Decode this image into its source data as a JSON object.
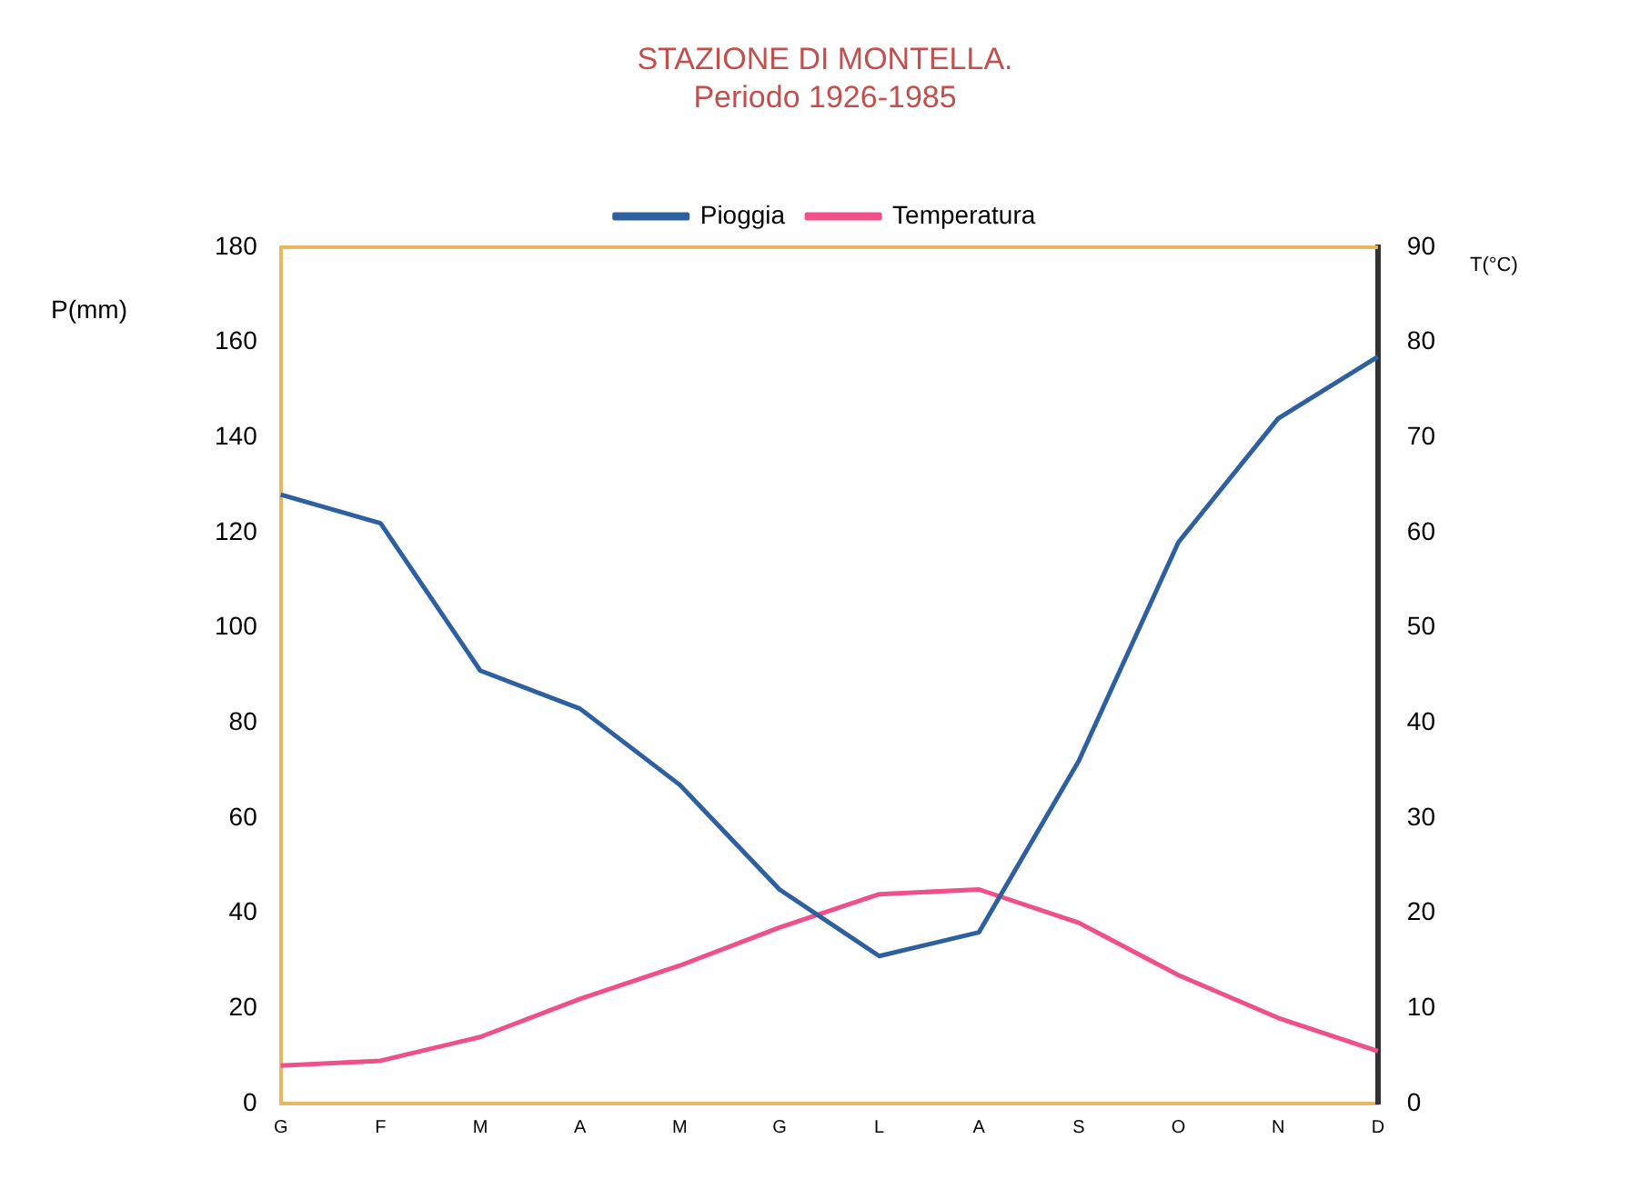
{
  "chart_data": {
    "type": "line",
    "title": "STAZIONE DI MONTELLA.",
    "subtitle": "Periodo 1926-1985",
    "ylabel": "P(mm)",
    "y2label": "T(°C)",
    "categories": [
      "G",
      "F",
      "M",
      "A",
      "M",
      "G",
      "L",
      "A",
      "S",
      "O",
      "N",
      "D"
    ],
    "series": [
      {
        "name": "Pioggia",
        "color": "#2e5f9e",
        "values": [
          128,
          122,
          91,
          83,
          67,
          45,
          31,
          36,
          72,
          118,
          144,
          157
        ]
      },
      {
        "name": "Temperatura",
        "color": "#f0508a",
        "axis": "y2",
        "values": [
          4,
          4.5,
          7,
          11,
          14.5,
          18.5,
          22,
          22.5,
          19,
          13.5,
          9,
          5.5
        ]
      }
    ],
    "ylim": [
      0,
      180
    ],
    "yticks": [
      0,
      20,
      40,
      60,
      80,
      100,
      120,
      140,
      160,
      180
    ],
    "y2lim": [
      0,
      90
    ],
    "y2ticks": [
      0,
      10,
      20,
      30,
      40,
      50,
      60,
      70,
      80,
      90
    ],
    "grid": false,
    "legend": "top",
    "marker": "none",
    "line_style": "solid"
  }
}
